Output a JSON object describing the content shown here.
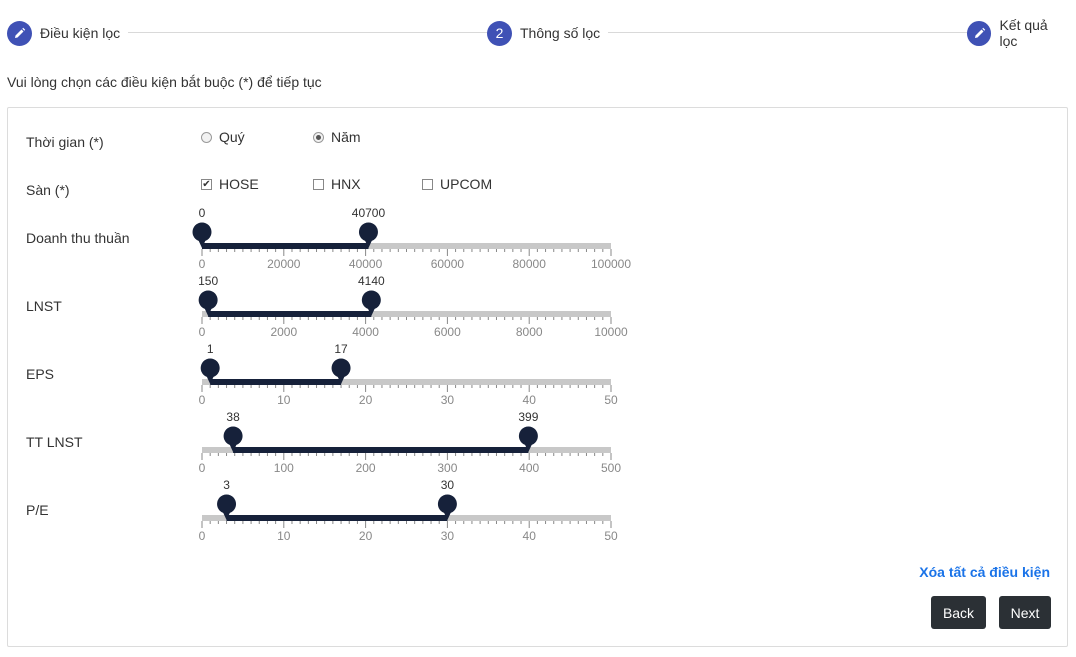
{
  "steps": [
    {
      "label": "Điều kiện lọc",
      "icon": "pencil-icon",
      "marker": ""
    },
    {
      "label": "Thông số lọc",
      "icon": "",
      "marker": "2"
    },
    {
      "label": "Kết quả lọc",
      "icon": "pencil-icon",
      "marker": ""
    }
  ],
  "instruction": "Vui lòng chọn các điều kiện bắt buộc (*) để tiếp tục",
  "time": {
    "label": "Thời gian (*)",
    "options": [
      {
        "label": "Quý",
        "checked": false
      },
      {
        "label": "Năm",
        "checked": true
      }
    ]
  },
  "exchange": {
    "label": "Sàn (*)",
    "options": [
      {
        "label": "HOSE",
        "checked": true
      },
      {
        "label": "HNX",
        "checked": false
      },
      {
        "label": "UPCOM",
        "checked": false
      }
    ]
  },
  "sliders": [
    {
      "label": "Doanh thu thuần",
      "min": 0,
      "max": 100000,
      "low": 0,
      "high": 40700,
      "ticks": [
        "0",
        "20000",
        "40000",
        "60000",
        "80000",
        "100000"
      ]
    },
    {
      "label": "LNST",
      "min": 0,
      "max": 10000,
      "low": 150,
      "high": 4140,
      "ticks": [
        "0",
        "2000",
        "4000",
        "6000",
        "8000",
        "10000"
      ]
    },
    {
      "label": "EPS",
      "min": 0,
      "max": 50,
      "low": 1,
      "high": 17,
      "ticks": [
        "0",
        "10",
        "20",
        "30",
        "40",
        "50"
      ]
    },
    {
      "label": "TT LNST",
      "min": 0,
      "max": 500,
      "low": 38,
      "high": 399,
      "ticks": [
        "0",
        "100",
        "200",
        "300",
        "400",
        "500"
      ]
    },
    {
      "label": "P/E",
      "min": 0,
      "max": 50,
      "low": 3,
      "high": 30,
      "ticks": [
        "0",
        "10",
        "20",
        "30",
        "40",
        "50"
      ]
    }
  ],
  "clear_link": "Xóa tất cả điều kiện",
  "buttons": {
    "back": "Back",
    "next": "Next"
  },
  "colors": {
    "accent": "#3f51b5",
    "track": "#c8c8c8",
    "range": "#16213a",
    "link": "#1a73e8",
    "button": "#2b3035"
  }
}
